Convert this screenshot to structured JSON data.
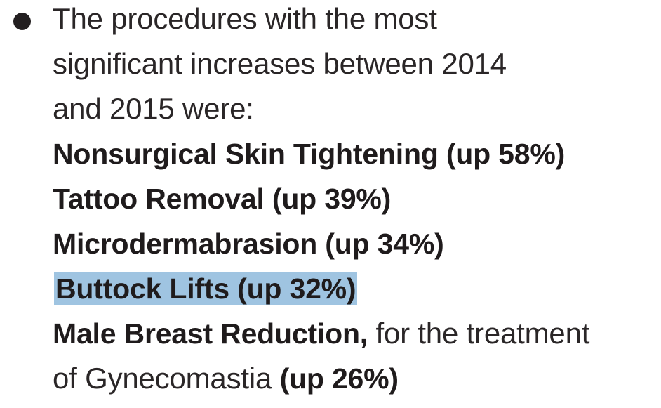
{
  "intro": {
    "line1": "The procedures with the most",
    "line2": "significant increases between 2014",
    "line3": "and 2015 were:"
  },
  "procedures": [
    {
      "name": "Nonsurgical Skin Tightening (up 58%)"
    },
    {
      "name": "Tattoo Removal (up 39%)"
    },
    {
      "name": "Microdermabrasion (up 34%)"
    },
    {
      "name": "Buttock Lifts (up 32%)",
      "highlight_color": "#9fc4e1"
    }
  ],
  "last_item": {
    "name": "Male Breast Reduction,",
    "rest_line1": " for the treatment",
    "rest_line2": "of Gynecomastia ",
    "percent": "(up 26%)"
  }
}
